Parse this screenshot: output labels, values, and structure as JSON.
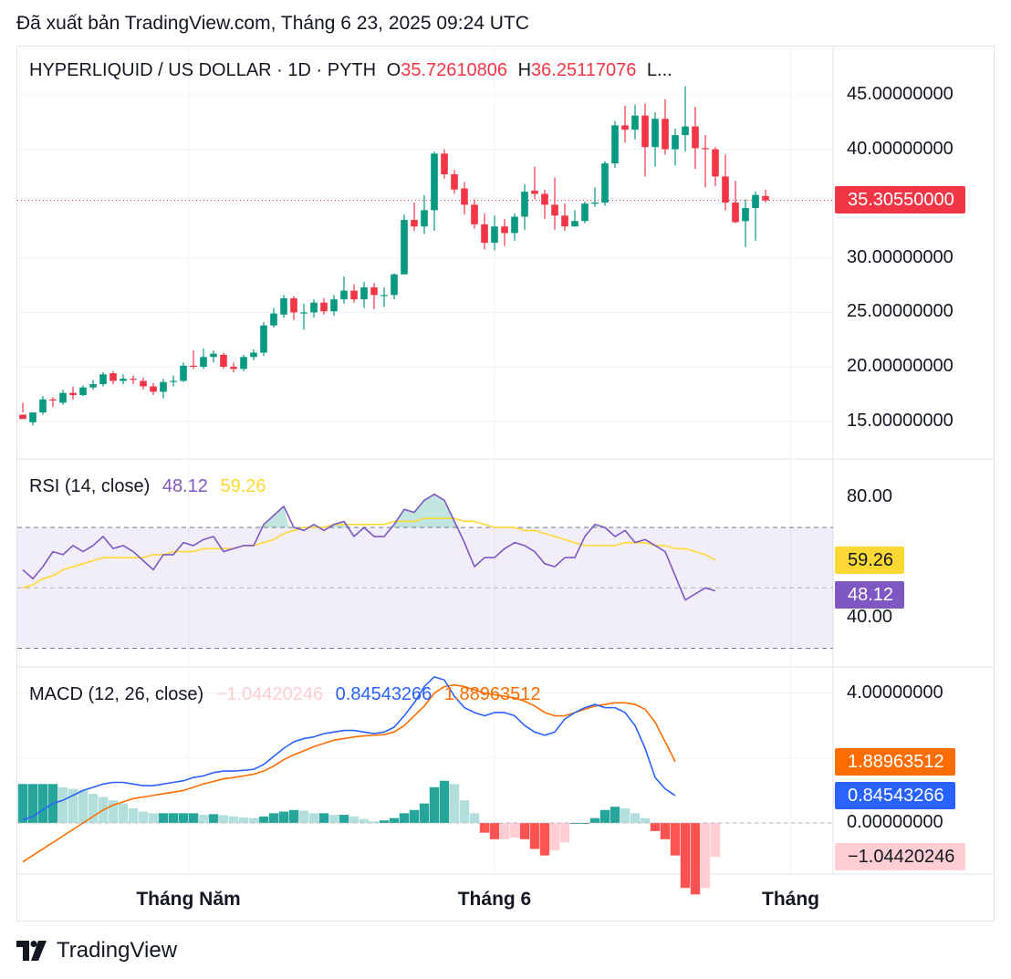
{
  "caption": "Đã xuất bản TradingView.com, Tháng 6 23, 2025 09:24 UTC",
  "header": {
    "symbol": "HYPERLIQUID / US DOLLAR · 1D · PYTH",
    "open_prefix": "O",
    "open_value": "35.72610806",
    "high_prefix": "H",
    "high_value": "36.25117076",
    "more": "L..."
  },
  "rsi_header": {
    "name": "RSI (14, close)",
    "value": "48.12",
    "ma": "59.26"
  },
  "macd_header": {
    "name": "MACD (12, 26, close)",
    "hist": "−1.04420246",
    "macd": "0.84543266",
    "signal": "1.88963512"
  },
  "tags": {
    "price": "35.30550000",
    "rsi_ma": "59.26",
    "rsi": "48.12",
    "signal": "1.88963512",
    "macd": "0.84543266",
    "hist": "−1.04420246"
  },
  "footer": {
    "brand": "TradingView"
  },
  "colors": {
    "up": "#089981",
    "down": "#f23645",
    "rsi": "#7e57c2",
    "rsi_ma": "#fdd835",
    "macd": "#2962ff",
    "signal": "#ff6d00",
    "hist_neg_light": "#ffcdd2",
    "hist_pos_light": "#b2dfdb"
  },
  "chart_data": [
    {
      "type": "candlestick",
      "title": "HYPERLIQUID / US DOLLAR · 1D · PYTH",
      "y_ticks": [
        "45.00000000",
        "40.00000000",
        "35.00000000",
        "30.00000000",
        "25.00000000",
        "20.00000000",
        "15.00000000"
      ],
      "y_tick_values": [
        45,
        40,
        35,
        30,
        25,
        20,
        15
      ],
      "x_ticks": [
        "Tháng Năm",
        "Tháng 6",
        "Tháng"
      ],
      "x_tick_index": [
        16.5,
        47,
        76.5
      ],
      "last_price": 35.3055,
      "candles": [
        [
          15.6,
          15.2,
          15.8,
          16.7
        ],
        [
          14.9,
          15.8,
          15.8,
          14.6
        ],
        [
          15.8,
          17.0,
          17.3,
          15.6
        ],
        [
          17.0,
          16.9,
          17.2,
          16.3
        ],
        [
          16.7,
          17.6,
          17.9,
          16.5
        ],
        [
          17.6,
          17.4,
          18.2,
          17.0
        ],
        [
          17.4,
          18.1,
          18.3,
          17.3
        ],
        [
          18.1,
          18.4,
          18.8,
          17.9
        ],
        [
          18.4,
          19.3,
          19.5,
          18.2
        ],
        [
          19.4,
          18.7,
          19.6,
          18.4
        ],
        [
          18.7,
          18.9,
          19.3,
          18.4
        ],
        [
          18.9,
          18.8,
          19.2,
          18.4
        ],
        [
          18.7,
          18.2,
          19.0,
          17.9
        ],
        [
          18.2,
          17.7,
          18.5,
          17.4
        ],
        [
          17.7,
          18.6,
          18.9,
          17.1
        ],
        [
          18.6,
          18.7,
          19.2,
          18.2
        ],
        [
          18.7,
          20.1,
          20.4,
          18.6
        ],
        [
          20.1,
          20.0,
          21.5,
          19.8
        ],
        [
          20.0,
          20.9,
          21.7,
          19.8
        ],
        [
          20.9,
          21.2,
          21.5,
          20.4
        ],
        [
          21.1,
          20.0,
          21.3,
          19.8
        ],
        [
          20.0,
          19.8,
          20.4,
          19.5
        ],
        [
          19.8,
          20.9,
          21.1,
          19.6
        ],
        [
          20.9,
          21.3,
          21.6,
          20.6
        ],
        [
          21.3,
          23.8,
          24.1,
          21.0
        ],
        [
          23.8,
          24.9,
          25.4,
          23.6
        ],
        [
          24.8,
          26.3,
          26.6,
          24.5
        ],
        [
          26.3,
          25.0,
          26.5,
          24.3
        ],
        [
          25.0,
          25.0,
          25.8,
          23.4
        ],
        [
          25.0,
          25.9,
          26.2,
          24.5
        ],
        [
          25.9,
          25.1,
          26.3,
          24.8
        ],
        [
          25.1,
          26.2,
          26.6,
          24.7
        ],
        [
          26.2,
          27.0,
          28.3,
          25.8
        ],
        [
          27.0,
          26.2,
          27.6,
          25.9
        ],
        [
          26.2,
          27.3,
          27.8,
          25.4
        ],
        [
          27.3,
          26.6,
          27.7,
          25.3
        ],
        [
          26.6,
          26.6,
          27.3,
          25.5
        ],
        [
          26.6,
          28.5,
          28.6,
          26.2
        ],
        [
          28.5,
          33.5,
          34.0,
          28.5
        ],
        [
          33.5,
          32.9,
          35.1,
          32.5
        ],
        [
          32.9,
          34.4,
          35.8,
          32.2
        ],
        [
          34.4,
          39.6,
          39.8,
          32.5
        ],
        [
          39.6,
          37.7,
          40.0,
          37.3
        ],
        [
          37.7,
          36.3,
          38.1,
          35.9
        ],
        [
          36.4,
          34.9,
          37.0,
          34.0
        ],
        [
          34.9,
          33.1,
          35.4,
          32.7
        ],
        [
          33.1,
          31.4,
          34.1,
          30.8
        ],
        [
          31.4,
          32.9,
          33.9,
          30.7
        ],
        [
          32.9,
          32.3,
          33.6,
          31.1
        ],
        [
          32.3,
          33.8,
          34.1,
          31.6
        ],
        [
          33.8,
          36.1,
          36.8,
          32.6
        ],
        [
          36.2,
          35.9,
          38.4,
          35.4
        ],
        [
          35.9,
          34.9,
          36.3,
          33.6
        ],
        [
          34.9,
          33.9,
          37.4,
          32.6
        ],
        [
          33.9,
          32.9,
          35.0,
          32.5
        ],
        [
          32.9,
          33.4,
          34.4,
          32.9
        ],
        [
          33.4,
          35.0,
          35.2,
          33.2
        ],
        [
          35.0,
          35.1,
          36.5,
          34.7
        ],
        [
          35.1,
          38.7,
          38.9,
          34.8
        ],
        [
          38.7,
          42.2,
          42.6,
          38.3
        ],
        [
          42.2,
          41.8,
          44.0,
          40.6
        ],
        [
          41.8,
          43.1,
          44.1,
          40.9
        ],
        [
          43.1,
          40.2,
          44.2,
          37.5
        ],
        [
          40.2,
          42.8,
          43.4,
          38.4
        ],
        [
          42.8,
          40.0,
          44.6,
          39.5
        ],
        [
          40.0,
          41.3,
          41.9,
          38.5
        ],
        [
          41.3,
          42.1,
          45.8,
          39.8
        ],
        [
          42.1,
          40.1,
          43.9,
          38.2
        ],
        [
          40.1,
          40.0,
          41.3,
          36.5
        ],
        [
          40.0,
          37.5,
          40.2,
          36.6
        ],
        [
          37.5,
          35.1,
          39.5,
          34.4
        ],
        [
          35.1,
          33.3,
          37.1,
          33.2
        ],
        [
          33.4,
          34.6,
          35.4,
          31.0
        ],
        [
          34.6,
          35.8,
          36.1,
          31.6
        ],
        [
          35.7,
          35.3,
          36.3,
          35.1
        ]
      ]
    },
    {
      "type": "line",
      "title": "RSI (14, close)",
      "y_ticks": [
        "80.00",
        "40.00"
      ],
      "y_tick_values": [
        80,
        40
      ],
      "band": [
        30,
        70
      ],
      "middle": 50,
      "series": [
        {
          "name": "RSI",
          "values": [
            56,
            53,
            57,
            62,
            61,
            64,
            62,
            64,
            67,
            63,
            64,
            62,
            59,
            56,
            61,
            61,
            65,
            64,
            66,
            67,
            62,
            63,
            64,
            64,
            71,
            74,
            77,
            70,
            69,
            71,
            69,
            71,
            72,
            67,
            70,
            67,
            67,
            71,
            76,
            75,
            79,
            81,
            79,
            72,
            65,
            57,
            60,
            60,
            63,
            65,
            64,
            62,
            58,
            57,
            60,
            60,
            67,
            71,
            70,
            67,
            69,
            65,
            66,
            64,
            62,
            54,
            46,
            48,
            50,
            49
          ]
        },
        {
          "name": "RSI-based MA",
          "values": [
            50,
            51,
            53,
            54,
            56,
            57,
            58,
            59,
            60,
            60,
            60,
            60,
            60,
            61,
            61,
            62,
            62,
            62,
            63,
            63,
            63,
            63,
            64,
            64,
            65,
            66,
            68,
            69,
            70,
            70,
            70,
            71,
            71,
            71,
            71,
            71,
            71,
            72,
            72,
            72,
            73,
            73,
            73,
            73,
            72,
            72,
            71,
            70,
            70,
            70,
            69,
            69,
            68,
            67,
            66,
            65,
            64,
            64,
            64,
            64,
            65,
            65,
            65,
            64,
            64,
            63,
            63,
            62,
            61,
            59.26
          ]
        }
      ]
    },
    {
      "type": "line",
      "title": "MACD (12, 26, close)",
      "y_ticks": [
        "4.00000000",
        "0.00000000"
      ],
      "y_tick_values": [
        4,
        0
      ],
      "series": [
        {
          "name": "MACD",
          "values": [
            0.1,
            0.2,
            0.4,
            0.6,
            0.7,
            0.85,
            1.0,
            1.1,
            1.2,
            1.25,
            1.25,
            1.2,
            1.15,
            1.15,
            1.2,
            1.25,
            1.3,
            1.4,
            1.45,
            1.55,
            1.6,
            1.6,
            1.62,
            1.65,
            1.8,
            2.05,
            2.3,
            2.5,
            2.6,
            2.65,
            2.75,
            2.8,
            2.85,
            2.85,
            2.8,
            2.75,
            2.8,
            2.95,
            3.3,
            3.7,
            4.2,
            4.5,
            4.4,
            3.9,
            3.55,
            3.4,
            3.3,
            3.4,
            3.4,
            3.3,
            3.0,
            2.8,
            2.7,
            2.8,
            3.2,
            3.4,
            3.55,
            3.65,
            3.55,
            3.55,
            3.4,
            3.0,
            2.3,
            1.4,
            1.05,
            0.84543266
          ]
        },
        {
          "name": "Signal",
          "values": [
            -1.2,
            -1.0,
            -0.8,
            -0.6,
            -0.4,
            -0.2,
            0.0,
            0.2,
            0.4,
            0.55,
            0.65,
            0.75,
            0.8,
            0.85,
            0.9,
            0.95,
            1.0,
            1.1,
            1.2,
            1.28,
            1.36,
            1.4,
            1.45,
            1.5,
            1.6,
            1.75,
            1.95,
            2.1,
            2.22,
            2.35,
            2.45,
            2.55,
            2.6,
            2.65,
            2.68,
            2.7,
            2.72,
            2.8,
            3.0,
            3.3,
            3.6,
            4.0,
            4.2,
            4.25,
            4.2,
            4.1,
            4.0,
            3.95,
            3.9,
            3.85,
            3.75,
            3.6,
            3.4,
            3.3,
            3.3,
            3.4,
            3.5,
            3.6,
            3.65,
            3.7,
            3.7,
            3.65,
            3.5,
            3.1,
            2.5,
            1.88963512
          ]
        },
        {
          "name": "Histogram",
          "values": [
            1.2,
            1.2,
            1.2,
            1.2,
            1.1,
            1.05,
            1.0,
            0.9,
            0.8,
            0.7,
            0.6,
            0.45,
            0.35,
            0.3,
            0.3,
            0.3,
            0.3,
            0.3,
            0.25,
            0.27,
            0.24,
            0.2,
            0.17,
            0.15,
            0.2,
            0.3,
            0.35,
            0.4,
            0.38,
            0.3,
            0.3,
            0.25,
            0.25,
            0.2,
            0.12,
            0.05,
            0.08,
            0.15,
            0.3,
            0.4,
            0.6,
            1.1,
            1.3,
            1.2,
            0.7,
            0.3,
            -0.3,
            -0.5,
            -0.5,
            -0.45,
            -0.5,
            -0.8,
            -1.0,
            -0.85,
            -0.6,
            0.0,
            0.0,
            0.15,
            0.4,
            0.5,
            0.45,
            0.3,
            0.15,
            -0.25,
            -0.5,
            -1.0,
            -2.0,
            -2.2,
            -2.0,
            -1.04420246
          ]
        }
      ]
    }
  ]
}
